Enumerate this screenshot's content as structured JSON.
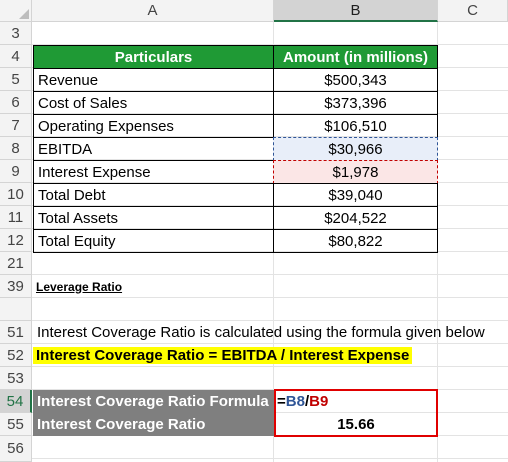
{
  "columns": [
    {
      "label": "A"
    },
    {
      "label": "B"
    },
    {
      "label": "C"
    }
  ],
  "rows": {
    "r3": "3",
    "r4": "4",
    "r5": "5",
    "r6": "6",
    "r7": "7",
    "r8": "8",
    "r9": "9",
    "r10": "10",
    "r11": "11",
    "r12": "12",
    "r21": "21",
    "r39": "39",
    "r51": "51",
    "r52": "52",
    "r53": "53",
    "r54": "54",
    "r55": "55",
    "r56": "56"
  },
  "table": {
    "header_particulars": "Particulars",
    "header_amount": "Amount (in millions)",
    "items": [
      {
        "label": "Revenue",
        "value": "$500,343"
      },
      {
        "label": "Cost of Sales",
        "value": "$373,396"
      },
      {
        "label": "Operating Expenses",
        "value": "$106,510"
      },
      {
        "label": "EBITDA",
        "value": "$30,966"
      },
      {
        "label": "Interest Expense",
        "value": "$1,978"
      },
      {
        "label": "Total Debt",
        "value": "$39,040"
      },
      {
        "label": "Total Assets",
        "value": "$204,522"
      },
      {
        "label": "Total Equity",
        "value": "$80,822"
      }
    ]
  },
  "section_title": "Leverage Ratio",
  "description": "Interest Coverage Ratio is calculated using the formula given below",
  "formula_text": "Interest Coverage Ratio = EBITDA / Interest Expense",
  "result": {
    "formula_label": "Interest Coverage Ratio Formula",
    "formula_eq": "=",
    "formula_ref1": "B8",
    "formula_slash": "/",
    "formula_ref2": "B9",
    "ratio_label": "Interest Coverage Ratio",
    "ratio_value": "15.66"
  },
  "colors": {
    "header_green": "#1f9a35",
    "ref_blue": "#2f5597",
    "ref_red": "#c00000",
    "highlight_box": "#e00000"
  }
}
